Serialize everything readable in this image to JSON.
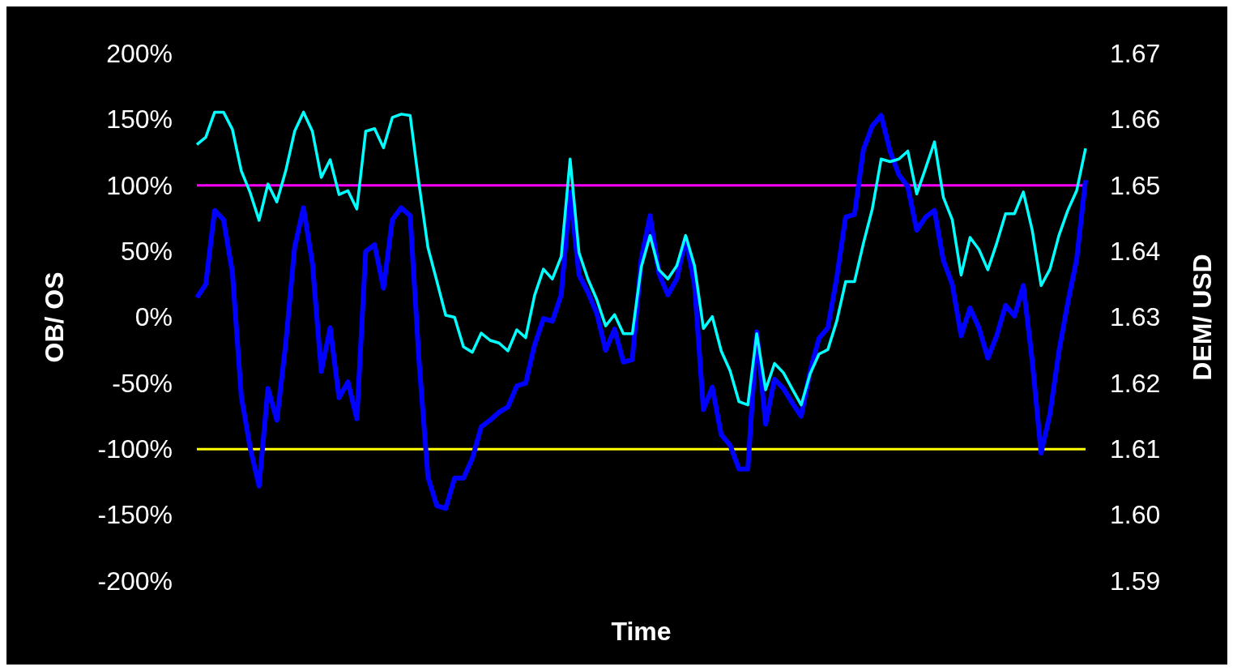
{
  "chart_data": {
    "type": "line",
    "xlabel": "Time",
    "ylabel": "OB/ OS",
    "y2label": "DEM/ USD",
    "categories": [
      null,
      null,
      null,
      null,
      null,
      null,
      null,
      null,
      null,
      null,
      null,
      null,
      null,
      null,
      null,
      null,
      null,
      null,
      null,
      null,
      null,
      null,
      null,
      null,
      null,
      null,
      null,
      null,
      null,
      null,
      null,
      null,
      null,
      null,
      null,
      null,
      null,
      null,
      null,
      null,
      null,
      null,
      null,
      null,
      null,
      null,
      null,
      null,
      null,
      null,
      null,
      null,
      null,
      null,
      null,
      null,
      null,
      null,
      null,
      null,
      null,
      null,
      null,
      null,
      null,
      null,
      null,
      null,
      null,
      null,
      null,
      null,
      null,
      null,
      null,
      null,
      null,
      null,
      null,
      null,
      null,
      null,
      null,
      null,
      null,
      null,
      null,
      null,
      null,
      null,
      null,
      null,
      null,
      null,
      null,
      null,
      null,
      null,
      null,
      null,
      null
    ],
    "series": [
      {
        "color": "#0000ff",
        "values": [
          15,
          25,
          81,
          74,
          34,
          -60,
          -99,
          -128,
          -54,
          -78,
          -20,
          53,
          83,
          41,
          -41,
          -8,
          -61,
          -49,
          -77,
          50,
          55,
          22,
          74,
          83,
          77,
          -33,
          -121,
          -143,
          -145,
          -122,
          -122,
          -107,
          -83,
          -78,
          -72,
          -68,
          -52,
          -50,
          -21,
          -1,
          -3,
          17,
          95,
          32,
          19,
          3,
          -25,
          -9,
          -34,
          -32,
          44,
          77,
          33,
          17,
          29,
          60,
          25,
          -70,
          -53,
          -89,
          -97,
          -115,
          -115,
          -11,
          -81,
          -47,
          -54,
          -65,
          -75,
          -41,
          -16,
          -8,
          30,
          76,
          78,
          127,
          145,
          153,
          126,
          108,
          99,
          66,
          76,
          81,
          43,
          25,
          -14,
          7,
          -8,
          -31,
          -14,
          9,
          1,
          24,
          -33,
          -103,
          -73,
          -26,
          11,
          44,
          104
        ]
      },
      {
        "color": "#00ffff",
        "axis": "y2",
        "values": [
          1.6562,
          1.6573,
          1.6611,
          1.6611,
          1.6585,
          1.6522,
          1.6489,
          1.6447,
          1.6502,
          1.6475,
          1.6522,
          1.6582,
          1.6611,
          1.6582,
          1.6512,
          1.6539,
          1.6486,
          1.6492,
          1.6464,
          1.6582,
          1.6586,
          1.6557,
          1.6603,
          1.6608,
          1.6606,
          1.6502,
          1.6406,
          1.6355,
          1.6303,
          1.63,
          1.6255,
          1.6247,
          1.6276,
          1.6265,
          1.6261,
          1.6249,
          1.6281,
          1.6269,
          1.6333,
          1.6373,
          1.6358,
          1.6392,
          1.654,
          1.6398,
          1.6358,
          1.6327,
          1.6287,
          1.6304,
          1.6275,
          1.6275,
          1.6376,
          1.6424,
          1.6372,
          1.6358,
          1.6378,
          1.6424,
          1.6378,
          1.6283,
          1.6301,
          1.6249,
          1.6219,
          1.6172,
          1.6167,
          1.6275,
          1.619,
          1.623,
          1.6216,
          1.6191,
          1.6167,
          1.6214,
          1.6244,
          1.6251,
          1.6294,
          1.6354,
          1.6354,
          1.6412,
          1.6464,
          1.654,
          1.6536,
          1.654,
          1.6552,
          1.6487,
          1.6526,
          1.6566,
          1.6482,
          1.6448,
          1.6364,
          1.6421,
          1.6403,
          1.6372,
          1.6412,
          1.6457,
          1.6457,
          1.649,
          1.6432,
          1.6348,
          1.6373,
          1.6424,
          1.6462,
          1.6492,
          1.6556
        ]
      }
    ],
    "ylim": [
      -200,
      200
    ],
    "yticks": [
      {
        "value": -200,
        "label": "-200%"
      },
      {
        "value": -150,
        "label": "-150%"
      },
      {
        "value": -100,
        "label": "-100%"
      },
      {
        "value": -50,
        "label": "-50%"
      },
      {
        "value": 0,
        "label": "0%"
      },
      {
        "value": 50,
        "label": "50%"
      },
      {
        "value": 100,
        "label": "100%"
      },
      {
        "value": 150,
        "label": "150%"
      },
      {
        "value": 200,
        "label": "200%"
      }
    ],
    "y2lim": [
      1.59,
      1.67
    ],
    "y2ticks": [
      {
        "value": 1.59,
        "label": "1.59"
      },
      {
        "value": 1.6,
        "label": "1.60"
      },
      {
        "value": 1.61,
        "label": "1.61"
      },
      {
        "value": 1.62,
        "label": "1.62"
      },
      {
        "value": 1.63,
        "label": "1.63"
      },
      {
        "value": 1.64,
        "label": "1.64"
      },
      {
        "value": 1.65,
        "label": "1.65"
      },
      {
        "value": 1.66,
        "label": "1.66"
      },
      {
        "value": 1.67,
        "label": "1.67"
      }
    ],
    "ref_lines": [
      {
        "axis": "y",
        "value": 100,
        "color": "#ff00ff"
      },
      {
        "axis": "y",
        "value": -100,
        "color": "#ffff00"
      }
    ],
    "tick_labels": "y",
    "grid": false,
    "marker": "none",
    "line_style": "solid"
  }
}
